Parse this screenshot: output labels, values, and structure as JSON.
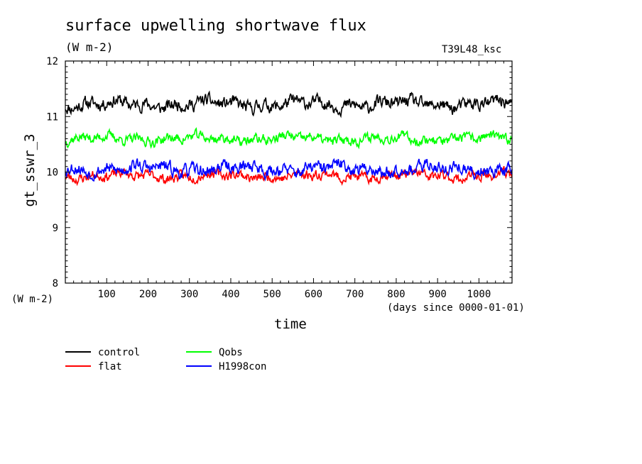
{
  "chart_data": {
    "type": "line",
    "title": "surface upwelling shortwave flux",
    "units": "(W m-2)",
    "tag": "T39L48_ksc",
    "ylabel": "gt_sswr_3",
    "yunits": "(W m-2)",
    "xlabel": "time",
    "xunits": "(days since 0000-01-01)",
    "xlim": [
      0,
      1080
    ],
    "ylim": [
      8,
      12
    ],
    "xticks": [
      100,
      200,
      300,
      400,
      500,
      600,
      700,
      800,
      900,
      1000
    ],
    "yticks": [
      8,
      9,
      10,
      11,
      12
    ],
    "grid": false,
    "legend_position": "bottom-left",
    "series": [
      {
        "name": "control",
        "color": "#000000",
        "mean": 11.22,
        "amp": 0.13,
        "seed": 11
      },
      {
        "name": "flat",
        "color": "#ff0000",
        "mean": 9.93,
        "amp": 0.1,
        "seed": 23
      },
      {
        "name": "Qobs",
        "color": "#00ff00",
        "mean": 10.6,
        "amp": 0.1,
        "seed": 37
      },
      {
        "name": "H1998con",
        "color": "#0000ff",
        "mean": 10.06,
        "amp": 0.13,
        "seed": 53
      }
    ]
  }
}
